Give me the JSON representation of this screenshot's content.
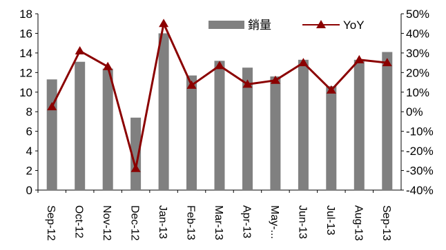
{
  "chart_data": {
    "type": "bar+line",
    "categories": [
      "Sep-12",
      "Oct-12",
      "Nov-12",
      "Dec-12",
      "Jan-13",
      "Feb-13",
      "Mar-13",
      "Apr-13",
      "May-...",
      "Jun-13",
      "Jul-13",
      "Aug-13",
      "Sep-13"
    ],
    "series": [
      {
        "name": "銷量",
        "type": "bar",
        "axis": "left",
        "color": "#808080",
        "values": [
          11.3,
          13.1,
          12.4,
          7.4,
          16.0,
          11.7,
          13.2,
          12.5,
          11.6,
          13.3,
          10.6,
          13.3,
          14.1
        ]
      },
      {
        "name": "YoY",
        "type": "line",
        "axis": "right",
        "color": "#8B0000",
        "marker": "triangle",
        "values": [
          2.5,
          31,
          23,
          -29,
          45,
          13.5,
          23.5,
          14,
          16,
          25,
          11,
          26.5,
          25
        ]
      }
    ],
    "y_left": {
      "min": 0,
      "max": 18,
      "ticks": [
        "0",
        "2",
        "4",
        "6",
        "8",
        "10",
        "12",
        "14",
        "16",
        "18"
      ]
    },
    "y_right": {
      "min": -40,
      "max": 50,
      "ticks": [
        "-40%",
        "-30%",
        "-20%",
        "-10%",
        "0%",
        "10%",
        "20%",
        "30%",
        "40%",
        "50%"
      ]
    },
    "grid": false,
    "legend_position": "top-right"
  }
}
